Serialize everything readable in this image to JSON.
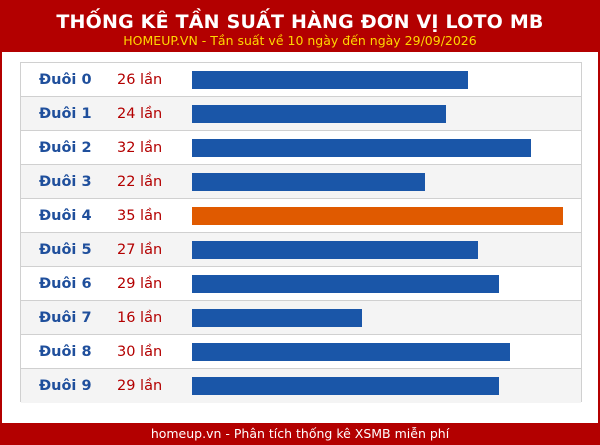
{
  "header": {
    "title": "THỐNG KÊ TẦN SUẤT HÀNG ĐƠN VỊ LOTO MB",
    "subtitle": "HOMEUP.VN - Tần suất về 10 ngày đến ngày 29/09/2026"
  },
  "chart_data": {
    "type": "bar",
    "orientation": "horizontal",
    "title": "THỐNG KÊ TẦN SUẤT HÀNG ĐƠN VỊ LOTO MB",
    "subtitle": "HOMEUP.VN - Tần suất về 10 ngày đến ngày 29/09/2026",
    "categories": [
      "Đuôi 0",
      "Đuôi 1",
      "Đuôi 2",
      "Đuôi 3",
      "Đuôi 4",
      "Đuôi 5",
      "Đuôi 6",
      "Đuôi 7",
      "Đuôi 8",
      "Đuôi 9"
    ],
    "values": [
      26,
      24,
      32,
      22,
      35,
      27,
      29,
      16,
      30,
      29
    ],
    "value_labels": [
      "26 lần",
      "24 lần",
      "32 lần",
      "22 lần",
      "35 lần",
      "27 lần",
      "29 lần",
      "16 lần",
      "30 lần",
      "29 lần"
    ],
    "highlight_index": 4,
    "xlim": [
      0,
      35
    ],
    "colors": {
      "bar": "#1a56a8",
      "highlight": "#e05a00",
      "label": "#1f4f9c",
      "count": "#b30000",
      "brand": "#b30000"
    }
  },
  "footer": {
    "text": "homeup.vn - Phân tích thống kê XSMB miễn phí"
  }
}
